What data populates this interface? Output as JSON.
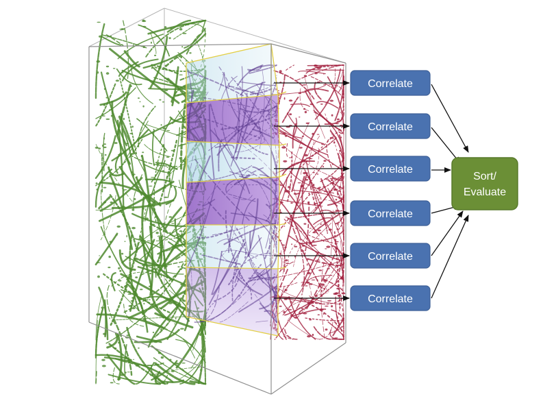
{
  "correlate_label": "Correlate",
  "sort_label_line1": "Sort/",
  "sort_label_line2": "Evaluate",
  "colors": {
    "correlate_fill": "#4a72b0",
    "correlate_stroke": "#3d5f96",
    "sort_fill": "#6b8f36",
    "sort_stroke": "#587a2b",
    "slab_purple": "#8a4fc4",
    "slab_light": "#bfe0ee",
    "slab_edge": "#e8d64a",
    "fiber_green": "#4f8a2f",
    "fiber_red": "#a3203f",
    "fiber_purple": "#5b3a8e",
    "arrow": "#111111",
    "box_edge": "#9a9a9a"
  },
  "icons": {
    "volume": "3d-fiber-volume-icon",
    "arrow": "arrow-right-icon"
  }
}
